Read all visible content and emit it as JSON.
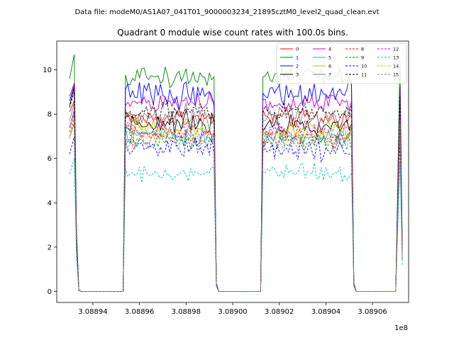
{
  "suptitle": "Data file: modeM0/AS1A07_041T01_9000003234_21895cztM0_level2_quad_clean.evt",
  "chart_data": {
    "type": "line",
    "title": "Quadrant 0 module wise count rates with 100.0s bins.",
    "xlabel": "",
    "ylabel": "",
    "x_offset_label": "1e8",
    "xlim": [
      3.0889245,
      3.0890755
    ],
    "ylim": [
      -0.5,
      11.3
    ],
    "xticks": [
      3.08894,
      3.08896,
      3.08898,
      3.089,
      3.08902,
      3.08904,
      3.08906
    ],
    "xtick_labels": [
      "3.08894",
      "3.08896",
      "3.08898",
      "3.08900",
      "3.08902",
      "3.08904",
      "3.08906"
    ],
    "yticks": [
      0,
      2,
      4,
      6,
      8,
      10
    ],
    "ytick_labels": [
      "0",
      "2",
      "4",
      "6",
      "8",
      "10"
    ],
    "bin_s": 100,
    "segments": [
      {
        "x_start": 3.08893,
        "n_active": 5,
        "n_zero": 19,
        "peak": [
          0,
          1,
          2
        ]
      },
      {
        "x_start": 3.088954,
        "n_active": 40,
        "n_zero": 19,
        "peak": []
      },
      {
        "x_start": 3.089013,
        "n_active": 40,
        "n_zero": 18,
        "peak": []
      },
      {
        "x_start": 3.0890718,
        "n_active": 2,
        "n_zero": 0,
        "peak": []
      }
    ],
    "series": [
      {
        "name": "0",
        "color": "#ff0000",
        "style": "solid",
        "level": 7.8,
        "noise": 0.28,
        "start": 8.1,
        "peak": 8.6
      },
      {
        "name": "1",
        "color": "#008000",
        "style": "solid",
        "level": 9.7,
        "noise": 0.3,
        "start": 9.6,
        "peak": 10.7
      },
      {
        "name": "2",
        "color": "#0000ff",
        "style": "solid",
        "level": 8.9,
        "noise": 0.35,
        "start": 8.6,
        "peak": 9.3
      },
      {
        "name": "3",
        "color": "#000000",
        "style": "solid",
        "level": 7.6,
        "noise": 0.28,
        "start": 8.4,
        "peak": 9.2
      },
      {
        "name": "4",
        "color": "#bf00bf",
        "style": "solid",
        "level": 8.5,
        "noise": 0.32,
        "start": 8.8,
        "peak": 9.4
      },
      {
        "name": "5",
        "color": "#00bfbf",
        "style": "solid",
        "level": 7.0,
        "noise": 0.25,
        "start": 7.4,
        "peak": 8.2
      },
      {
        "name": "6",
        "color": "#bfbf00",
        "style": "solid",
        "level": 7.3,
        "noise": 0.3,
        "start": 7.5,
        "peak": 8.0
      },
      {
        "name": "7",
        "color": "#808080",
        "style": "solid",
        "level": 7.9,
        "noise": 0.3,
        "start": 7.7,
        "peak": 8.5
      },
      {
        "name": "8",
        "color": "#ff0000",
        "style": "dashed",
        "level": 7.0,
        "noise": 0.25,
        "start": 7.2,
        "peak": 7.9
      },
      {
        "name": "9",
        "color": "#008000",
        "style": "dashed",
        "level": 6.7,
        "noise": 0.25,
        "start": 7.0,
        "peak": 7.6
      },
      {
        "name": "10",
        "color": "#0000ff",
        "style": "dashed",
        "level": 6.4,
        "noise": 0.28,
        "start": 6.2,
        "peak": 7.0
      },
      {
        "name": "11",
        "color": "#000000",
        "style": "dashed",
        "level": 8.1,
        "noise": 0.28,
        "start": 8.3,
        "peak": 9.0
      },
      {
        "name": "12",
        "color": "#bf00bf",
        "style": "dashed",
        "level": 7.2,
        "noise": 0.25,
        "start": 7.4,
        "peak": 8.1
      },
      {
        "name": "13",
        "color": "#00bfbf",
        "style": "dashed",
        "level": 5.3,
        "noise": 0.25,
        "start": 5.3,
        "peak": 6.0
      },
      {
        "name": "14",
        "color": "#bfbf00",
        "style": "dashed",
        "level": 7.1,
        "noise": 0.28,
        "start": 7.0,
        "peak": 7.8
      },
      {
        "name": "15",
        "color": "#808080",
        "style": "dashed",
        "level": 6.8,
        "noise": 0.3,
        "start": 6.9,
        "peak": 7.6
      }
    ]
  }
}
